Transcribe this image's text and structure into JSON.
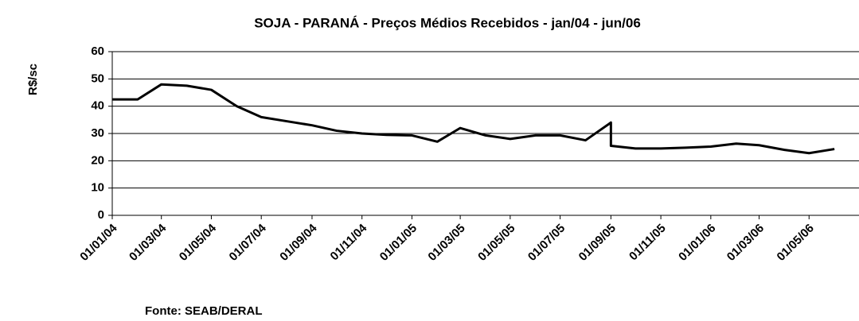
{
  "chart_data": {
    "type": "line",
    "title": "SOJA - PARANÁ - Preços Médios Recebidos - jan/04 - jun/06",
    "y_label": "R$/sc",
    "source": "Fonte: SEAB/DERAL",
    "x": [
      "01/01/04",
      "01/02/04",
      "01/03/04",
      "01/04/04",
      "01/05/04",
      "01/06/04",
      "01/07/04",
      "01/08/04",
      "01/09/04",
      "01/10/04",
      "01/11/04",
      "01/12/04",
      "01/01/05",
      "01/02/05",
      "01/03/05",
      "01/04/05",
      "01/05/05",
      "01/06/05",
      "01/07/05",
      "01/08/05",
      "01/09/05",
      "01/09/05",
      "01/10/05",
      "01/11/05",
      "01/12/05",
      "01/01/06",
      "01/02/06",
      "01/03/06",
      "01/04/06",
      "01/05/06",
      "01/06/06"
    ],
    "series": [
      {
        "name": "Soja",
        "color": "#000000",
        "values": [
          42.5,
          42.5,
          48,
          47.5,
          46,
          40,
          36,
          34.5,
          33,
          31,
          30,
          29.5,
          29.3,
          27,
          32,
          29.3,
          28,
          29.3,
          29.3,
          27.5,
          34,
          25.5,
          24.5,
          24.5,
          24.8,
          25.2,
          26.3,
          25.7,
          24,
          22.8,
          24.3
        ]
      }
    ],
    "xlim": [
      "01/01/04",
      "01/07/06"
    ],
    "xticks": [
      "01/01/04",
      "01/03/04",
      "01/05/04",
      "01/07/04",
      "01/09/04",
      "01/11/04",
      "01/01/05",
      "01/03/05",
      "01/05/05",
      "01/07/05",
      "01/09/05",
      "01/11/05",
      "01/01/06",
      "01/03/06",
      "01/05/06"
    ],
    "ylim": [
      0,
      60
    ],
    "yticks": [
      0,
      10,
      20,
      30,
      40,
      50,
      60
    ],
    "grid": true
  }
}
